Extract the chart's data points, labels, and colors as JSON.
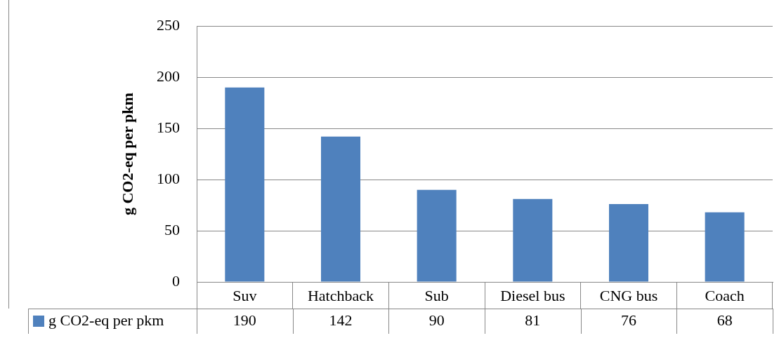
{
  "chart_data": {
    "type": "bar",
    "ylabel": "g CO2-eq per pkm",
    "categories": [
      "Suv",
      "Hatchback",
      "Sub",
      "Diesel bus",
      "CNG bus",
      "Coach"
    ],
    "series": [
      {
        "name": "g CO2-eq per pkm",
        "color": "#4f81bd",
        "values": [
          190,
          142,
          90,
          81,
          76,
          68
        ]
      }
    ],
    "ylim": [
      0,
      250
    ],
    "yticks": [
      0,
      50,
      100,
      150,
      200,
      250
    ],
    "grid": "y",
    "legend": "bottom left",
    "data_labels": true
  }
}
